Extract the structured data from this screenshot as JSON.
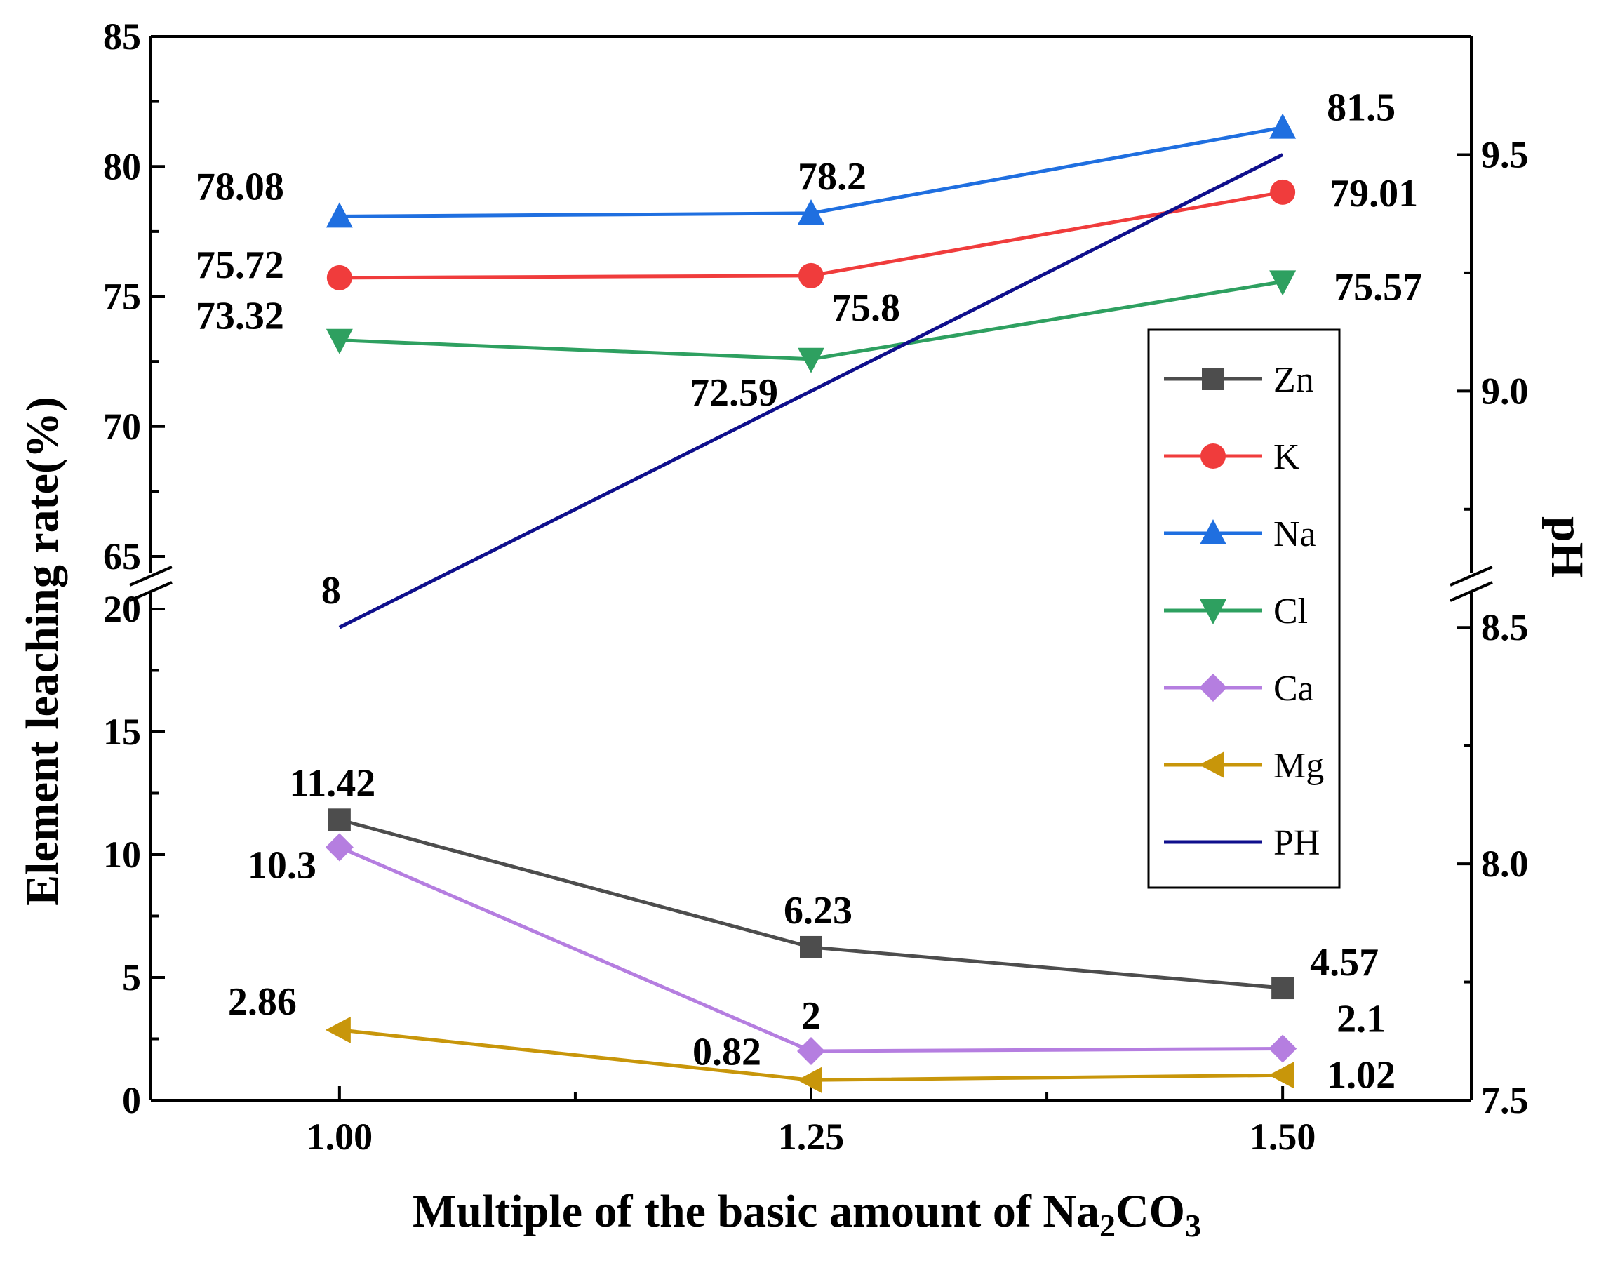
{
  "chart_data": {
    "type": "line",
    "xlabel_prefix": "Multiple of the basic amount of  Na",
    "xlabel_sub1": "2",
    "xlabel_mid": "CO",
    "xlabel_sub2": "3",
    "ylabel_left": "Element leaching rate(%)",
    "ylabel_right": "pH",
    "x_ticks": [
      "1.00",
      "1.25",
      "1.50"
    ],
    "x": [
      1.0,
      1.25,
      1.5
    ],
    "xlim": [
      0.9,
      1.6
    ],
    "ylim_left_lower": [
      0,
      20
    ],
    "ylim_left_upper": [
      65,
      85
    ],
    "left_ticks_lower": [
      "0",
      "5",
      "10",
      "15",
      "20"
    ],
    "left_ticks_upper": [
      "65",
      "70",
      "75",
      "80",
      "85"
    ],
    "ylim_right": [
      7.5,
      9.75
    ],
    "right_ticks": [
      "7.5",
      "8.0",
      "8.5",
      "9.0",
      "9.5"
    ],
    "series": [
      {
        "name": "Zn",
        "color": "#4d4d4d",
        "marker": "square",
        "values": [
          11.42,
          6.23,
          4.57
        ],
        "labels": [
          "11.42",
          "6.23",
          "4.57"
        ]
      },
      {
        "name": "K",
        "color": "#f03c3c",
        "marker": "circle",
        "values": [
          75.72,
          75.8,
          79.01
        ],
        "labels": [
          "75.72",
          "75.8",
          "79.01"
        ]
      },
      {
        "name": "Na",
        "color": "#1f6fe0",
        "marker": "triangle-up",
        "values": [
          78.08,
          78.2,
          81.5
        ],
        "labels": [
          "78.08",
          "78.2",
          "81.5"
        ]
      },
      {
        "name": "Cl",
        "color": "#2ea060",
        "marker": "triangle-down",
        "values": [
          73.32,
          72.59,
          75.57
        ],
        "labels": [
          "73.32",
          "72.59",
          "75.57"
        ]
      },
      {
        "name": "Ca",
        "color": "#b57ee0",
        "marker": "diamond",
        "values": [
          10.3,
          2,
          2.1
        ],
        "labels": [
          "10.3",
          "2",
          "2.1"
        ]
      },
      {
        "name": "Mg",
        "color": "#c8960a",
        "marker": "triangle-left",
        "values": [
          2.86,
          0.82,
          1.02
        ],
        "labels": [
          "2.86",
          "0.82",
          "1.02"
        ]
      },
      {
        "name": "PH",
        "color": "#0f0f8c",
        "marker": "none",
        "axis": "right",
        "values": [
          8.5,
          9.0,
          9.5
        ],
        "labels": [
          "8",
          "",
          ""
        ]
      }
    ]
  }
}
